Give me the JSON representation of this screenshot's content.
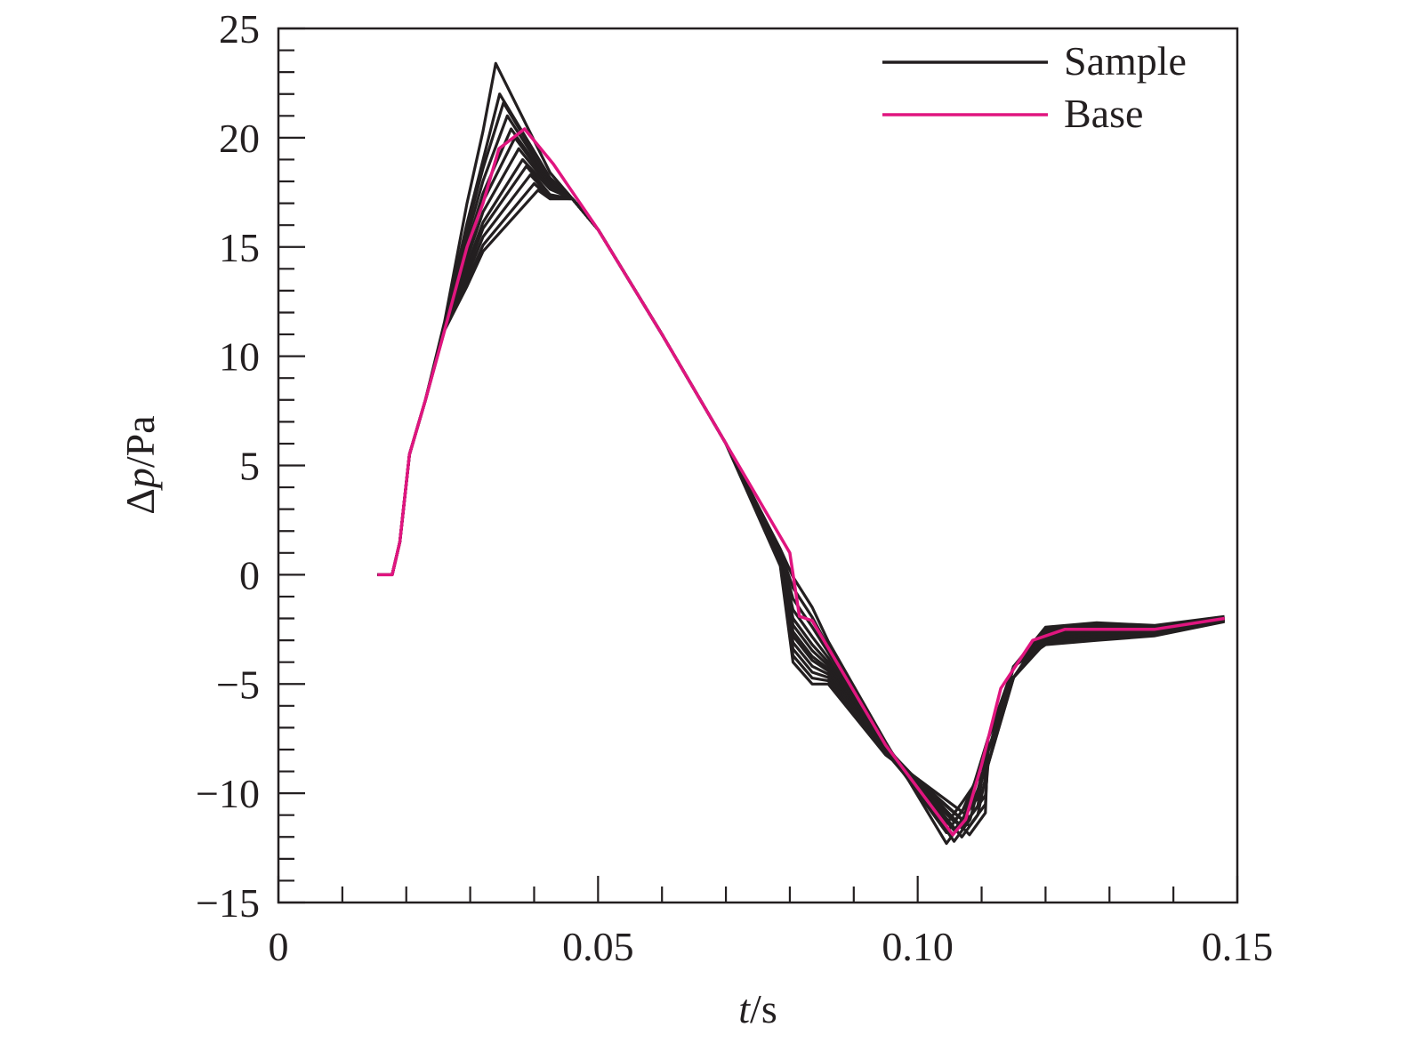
{
  "chart_data": {
    "type": "line",
    "xlabel_italic": "t",
    "xlabel_unit": "/s",
    "ylabel_delta": "Δ",
    "ylabel_italic": "p",
    "ylabel_unit": "/Pa",
    "xlim": [
      0,
      0.15
    ],
    "ylim": [
      -15,
      25
    ],
    "x_ticks": [
      0,
      0.05,
      0.1,
      0.15
    ],
    "x_tick_labels": [
      "0",
      "0.05",
      "0.10",
      "0.15"
    ],
    "x_minor_step": 0.01,
    "y_ticks": [
      -15,
      -10,
      -5,
      0,
      5,
      10,
      15,
      20,
      25
    ],
    "y_tick_labels": [
      "−15",
      "−10",
      "−5",
      "0",
      "5",
      "10",
      "15",
      "20",
      "25"
    ],
    "y_minor_step": 1,
    "grid": false,
    "legend_position": "top-right",
    "legend": [
      {
        "label": "Sample",
        "color": "#231f20"
      },
      {
        "label": "Base",
        "color": "#e0157f"
      }
    ],
    "base_series": {
      "name": "Base",
      "color": "#e0157f",
      "points": [
        [
          0.0155,
          0
        ],
        [
          0.0178,
          0
        ],
        [
          0.019,
          1.5
        ],
        [
          0.0205,
          5.5
        ],
        [
          0.023,
          8.0
        ],
        [
          0.026,
          11.2
        ],
        [
          0.0295,
          15.0
        ],
        [
          0.032,
          17.0
        ],
        [
          0.0345,
          19.5
        ],
        [
          0.0385,
          20.4
        ],
        [
          0.043,
          18.8
        ],
        [
          0.05,
          15.8
        ],
        [
          0.06,
          11.0
        ],
        [
          0.07,
          6.0
        ],
        [
          0.08,
          1.0
        ],
        [
          0.0815,
          -1.9
        ],
        [
          0.0835,
          -2.1
        ],
        [
          0.095,
          -7.8
        ],
        [
          0.1055,
          -11.9
        ],
        [
          0.1075,
          -11.2
        ],
        [
          0.11,
          -8.7
        ],
        [
          0.113,
          -5.2
        ],
        [
          0.118,
          -3.0
        ],
        [
          0.123,
          -2.5
        ],
        [
          0.13,
          -2.5
        ],
        [
          0.137,
          -2.5
        ],
        [
          0.148,
          -2.0
        ]
      ]
    },
    "sample_series": {
      "color": "#231f20",
      "peak_values": [
        23.4,
        22.0,
        21.6,
        21.0,
        20.4,
        20.0,
        19.5,
        19.0,
        18.7,
        18.3,
        17.9,
        17.6
      ],
      "trough_values": [
        -12.3,
        -12.2,
        -12.0,
        -11.9,
        -11.8,
        -11.7,
        -11.6,
        -11.5,
        -11.4,
        -11.3,
        -11.2,
        -11.1
      ],
      "kink_offsets": [
        0.9,
        0.4,
        -0.1,
        -0.6,
        -1.0,
        -1.3,
        -1.6,
        -1.8,
        -2.1,
        -2.4,
        -2.7,
        -3.0
      ],
      "tail_offsets": [
        0.3,
        0.2,
        0.1,
        0.0,
        -0.1,
        -0.2,
        -0.3,
        -0.4,
        -0.5,
        -0.3,
        -0.2,
        -0.1
      ]
    }
  }
}
